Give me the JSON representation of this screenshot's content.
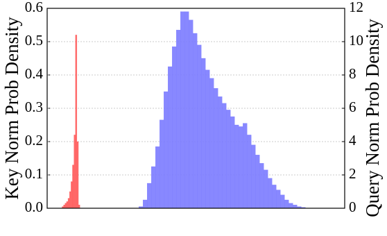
{
  "chart_data": {
    "type": "histogram",
    "y_label": "Key Norm Prob Density",
    "y2_label": "Query Norm Prob Density",
    "xlim": [
      0,
      100
    ],
    "ylim": [
      0,
      0.6
    ],
    "yticks": [
      {
        "value": 0,
        "label": "0.0"
      },
      0.1,
      0.2,
      0.3,
      0.4,
      0.5,
      0.6
    ],
    "y2lim": [
      0,
      12
    ],
    "y2ticks": [
      0,
      2,
      4,
      6,
      8,
      10,
      12
    ],
    "grid": true,
    "series": [
      {
        "name": "Key Norm",
        "color": "#ff5a5a",
        "axis": "y",
        "bins": [
          5,
          5.5,
          6,
          6.5,
          7,
          7.5,
          8,
          8.5,
          9,
          9.5,
          10,
          10.5,
          11
        ],
        "values": [
          0.005,
          0.01,
          0.015,
          0.02,
          0.03,
          0.05,
          0.08,
          0.13,
          0.22,
          0.52,
          0.2,
          0.01
        ]
      },
      {
        "name": "Query Norm",
        "color": "#7b7bff",
        "axis": "y2",
        "bins": [
          30.8,
          32.2,
          33.6,
          35,
          36.4,
          37.8,
          39.2,
          40.6,
          42,
          43.4,
          44.8,
          46.2,
          47.6,
          49,
          50.4,
          51.8,
          53.2,
          54.6,
          56,
          57.4,
          58.8,
          60.2,
          61.6,
          63,
          64.4,
          65.8,
          67.2,
          68.6,
          70,
          71.4,
          72.8,
          74.2,
          75.6,
          77,
          78.4,
          79.8,
          81.2,
          82.6,
          84,
          85.4,
          86.8
        ],
        "values": [
          0.1,
          0.5,
          1.5,
          2.5,
          3.7,
          5.3,
          7.0,
          8.5,
          9.7,
          10.7,
          11.8,
          11.8,
          11.3,
          10.5,
          9.8,
          9.0,
          8.3,
          7.8,
          7.2,
          6.7,
          6.3,
          5.9,
          5.5,
          5.0,
          4.9,
          5.1,
          4.4,
          3.8,
          3.2,
          2.7,
          2.3,
          1.8,
          1.4,
          1.1,
          0.8,
          0.5,
          0.3,
          0.2,
          0.1,
          0.05
        ]
      }
    ]
  }
}
